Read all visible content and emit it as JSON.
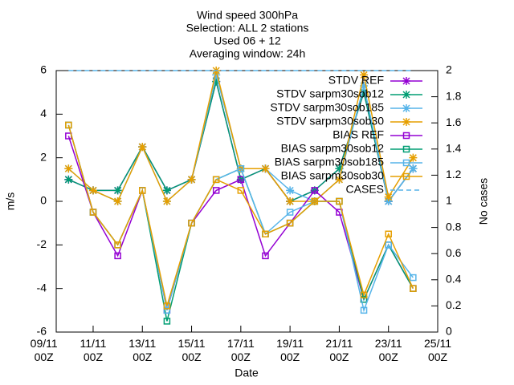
{
  "chart_data": {
    "type": "line",
    "title": [
      "Wind speed 300hPa",
      "Selection: ALL      2 stations",
      "Used 06 + 12",
      "Averaging window: 24h"
    ],
    "xlabel": "Date",
    "ylabel": "m/s",
    "y2label": "No cases",
    "x": [
      "10/11 00Z",
      "11/11 00Z",
      "12/11 00Z",
      "13/11 00Z",
      "14/11 00Z",
      "15/11 00Z",
      "16/11 00Z",
      "17/11 00Z",
      "18/11 00Z",
      "19/11 00Z",
      "20/11 00Z",
      "21/11 00Z",
      "22/11 00Z",
      "23/11 00Z",
      "24/11 00Z"
    ],
    "xlim": [
      "09/11 12Z",
      "25/11 00Z"
    ],
    "xticks": [
      {
        "value": "09/11 00Z",
        "label": "09/11\n00Z"
      },
      {
        "value": "11/11 00Z",
        "label": "11/11\n00Z"
      },
      {
        "value": "13/11 00Z",
        "label": "13/11\n00Z"
      },
      {
        "value": "15/11 00Z",
        "label": "15/11\n00Z"
      },
      {
        "value": "17/11 00Z",
        "label": "17/11\n00Z"
      },
      {
        "value": "19/11 00Z",
        "label": "19/11\n00Z"
      },
      {
        "value": "21/11 00Z",
        "label": "21/11\n00Z"
      },
      {
        "value": "23/11 00Z",
        "label": "23/11\n00Z"
      },
      {
        "value": "25/11 00Z",
        "label": "25/11\n00Z"
      }
    ],
    "ylim": [
      -6,
      6
    ],
    "yticks": [
      -6,
      -4,
      -2,
      0,
      2,
      4,
      6
    ],
    "y2lim": [
      0,
      2
    ],
    "y2ticks": [
      0,
      0.2,
      0.4,
      0.6,
      0.8,
      1,
      1.2,
      1.4,
      1.6,
      1.8,
      2
    ],
    "legend": "top-right",
    "series": [
      {
        "name": "STDV REF",
        "color": "#9400d3",
        "marker": "star",
        "values": [
          1,
          0.5,
          0.5,
          2.5,
          0.5,
          1,
          5.5,
          1,
          1.5,
          0,
          0.5,
          1.5,
          5,
          0,
          1.5
        ]
      },
      {
        "name": "STDV sarpm30sob12",
        "color": "#009e73",
        "marker": "star",
        "values": [
          1,
          0.5,
          0.5,
          2.5,
          0.5,
          1,
          5.5,
          1,
          1.5,
          0,
          0.5,
          1.5,
          5,
          0,
          1.5
        ]
      },
      {
        "name": "STDV sarpm30sob185",
        "color": "#56b4e9",
        "marker": "star",
        "values": [
          1.5,
          0.5,
          0,
          2.5,
          0,
          1,
          5.8,
          1.5,
          1.5,
          0.5,
          0,
          1,
          5.3,
          0,
          1.5
        ]
      },
      {
        "name": "STDV sarpm30sob30",
        "color": "#e69f00",
        "marker": "star",
        "values": [
          1.5,
          0.5,
          0,
          2.5,
          0,
          1,
          6,
          1.5,
          1.5,
          0,
          0,
          1,
          5.8,
          0.2,
          2
        ]
      },
      {
        "name": "BIAS REF",
        "color": "#9400d3",
        "marker": "square",
        "values": [
          3,
          -0.5,
          -2.5,
          0.5,
          -5,
          -1,
          0.5,
          1,
          -2.5,
          -1,
          0.5,
          -0.5,
          -4.5,
          -2,
          -4
        ]
      },
      {
        "name": "BIAS sarpm30sob12",
        "color": "#009e73",
        "marker": "square",
        "values": [
          3.5,
          -0.5,
          -2,
          0.5,
          -5.5,
          -1,
          1,
          1.5,
          -1.5,
          -1,
          0,
          0,
          -4.5,
          -2,
          -4
        ]
      },
      {
        "name": "BIAS sarpm30sob185",
        "color": "#56b4e9",
        "marker": "square",
        "values": [
          3.5,
          -0.5,
          -2,
          0.5,
          -5,
          -1,
          1,
          1.5,
          -1.5,
          -0.5,
          0,
          0,
          -5,
          -2,
          -3.5
        ]
      },
      {
        "name": "BIAS sarpm30sob30",
        "color": "#e69f00",
        "marker": "square",
        "values": [
          3.5,
          -0.5,
          -2,
          0.5,
          -4.8,
          -1,
          1,
          0.5,
          -1.5,
          -1,
          0,
          0,
          -4.3,
          -1.5,
          -4
        ]
      },
      {
        "name": "CASES",
        "color": "#56b4e9",
        "marker": "none",
        "dash": true,
        "axis": "y2",
        "values": [
          2,
          2,
          2,
          2,
          2,
          2,
          2,
          2,
          2,
          2,
          2,
          2,
          2,
          2,
          2
        ]
      }
    ]
  }
}
